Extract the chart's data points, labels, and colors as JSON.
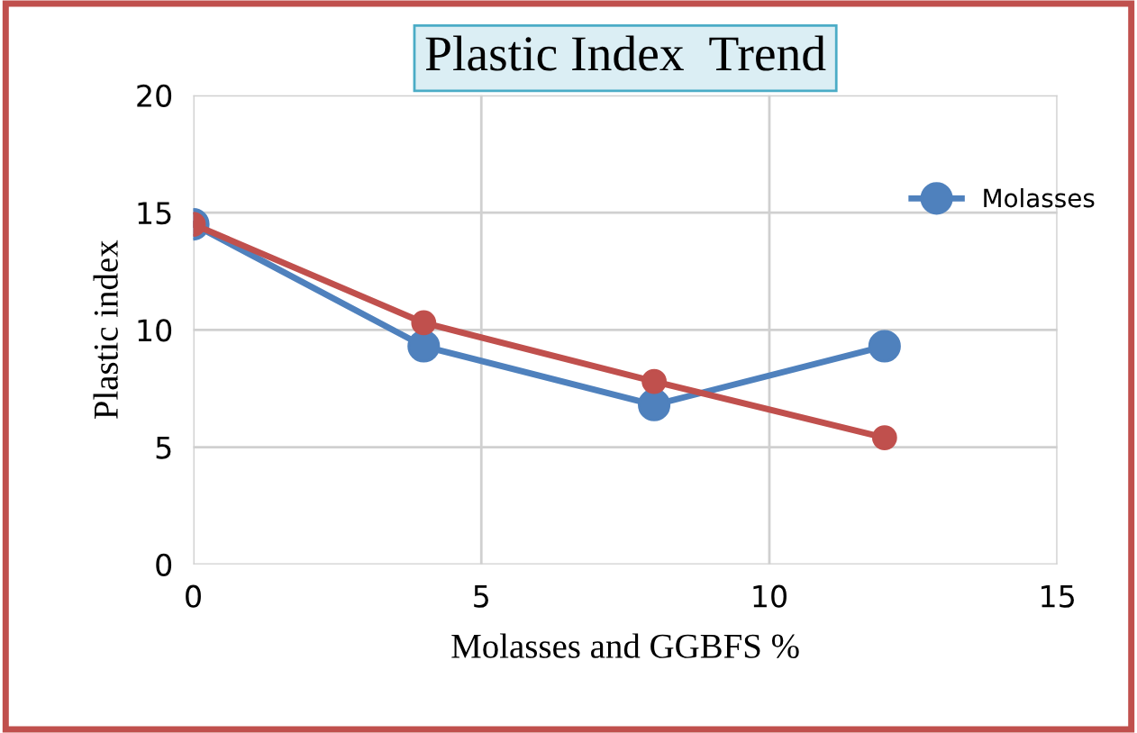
{
  "chart_data": {
    "type": "line",
    "title": "Plastic Index  Trend",
    "xlabel": "Molasses and GGBFS %",
    "ylabel": "Plastic index",
    "x": [
      0,
      4,
      8,
      12
    ],
    "series": [
      {
        "name": "Molasses",
        "color": "#4f81bd",
        "values": [
          14.5,
          9.3,
          6.8,
          9.3
        ]
      },
      {
        "color": "#c0504d",
        "values": [
          14.5,
          10.3,
          7.8,
          5.4
        ]
      }
    ],
    "xlim": [
      0,
      15
    ],
    "xticks": [
      0,
      5,
      10,
      15
    ],
    "ylim": [
      0,
      20
    ],
    "yticks": [
      0,
      5,
      10,
      15,
      20
    ],
    "grid": true,
    "legend": "top right",
    "marker": "circle",
    "line_style": "solid"
  }
}
